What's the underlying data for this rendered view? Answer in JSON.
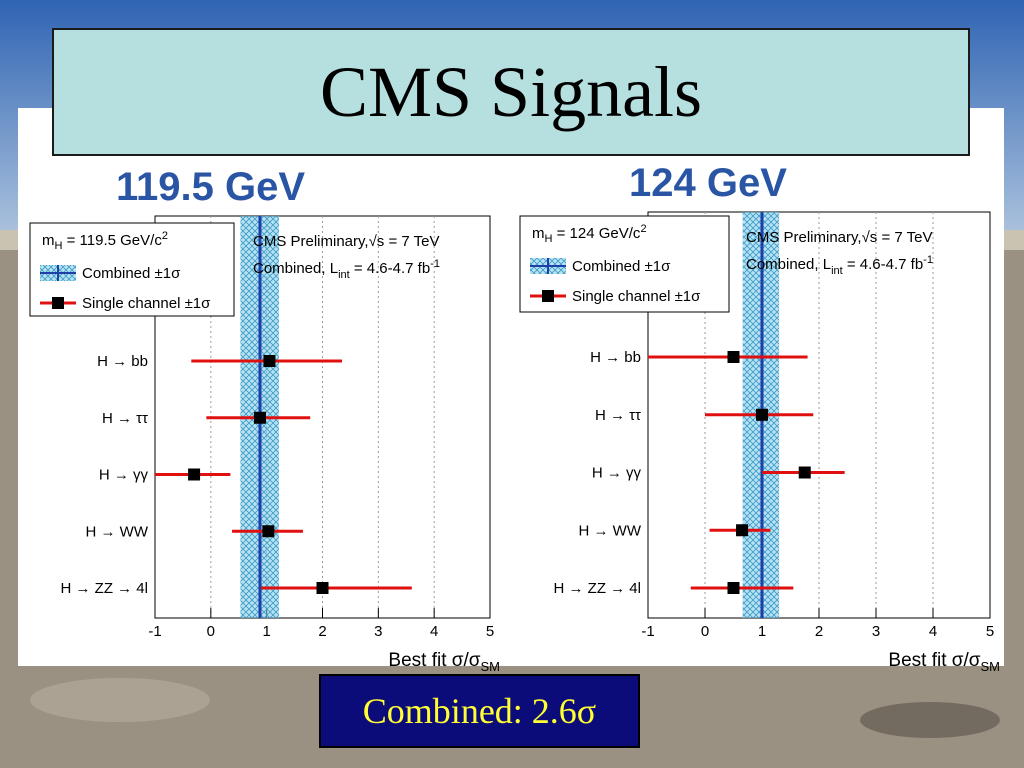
{
  "slide": {
    "title": "CMS Signals",
    "result": "Combined: 2.6σ"
  },
  "colors": {
    "title_bg": "#b6dfe0",
    "result_bg": "#0b0b7a",
    "result_text": "#ffff33",
    "mass_label": "#2a54a4",
    "combined_line": "#1f3fa8",
    "band": "#7ec9e6",
    "single_channel": "#e01010",
    "marker": "#000000"
  },
  "chart_data": [
    {
      "type": "scatter",
      "mass_label": "119.5 GeV",
      "legend": {
        "mass": "m",
        "mass_sub": "H",
        "mass_value": " = 119.5 GeV/c",
        "mass_sup": "2",
        "combined": "Combined ±1σ",
        "single": "Single channel ±1σ"
      },
      "annotation": {
        "line1": "CMS Preliminary,√s = 7 TeV",
        "line2a": "Combined, L",
        "line2sub": "int",
        "line2b": " = 4.6-4.7 fb",
        "line2sup": "-1"
      },
      "xlabel": "Best fit σ/σ",
      "xlabel_sub": "SM",
      "xlim": [
        -1,
        5
      ],
      "xticks": [
        "-1",
        "0",
        "1",
        "2",
        "3",
        "4",
        "5"
      ],
      "grid": true,
      "combined": {
        "value": 0.88,
        "low": 0.53,
        "high": 1.22
      },
      "channels": [
        {
          "label": "H → bb",
          "value": 1.05,
          "low": -0.35,
          "high": 2.35
        },
        {
          "label": "H → ττ",
          "value": 0.88,
          "low": -0.08,
          "high": 1.78
        },
        {
          "label": "H → γγ",
          "value": -0.3,
          "low": -1.0,
          "high": 0.35
        },
        {
          "label": "H → WW",
          "value": 1.03,
          "low": 0.38,
          "high": 1.65
        },
        {
          "label": "H → ZZ → 4l",
          "value": 2.0,
          "low": 0.9,
          "high": 3.6
        }
      ]
    },
    {
      "type": "scatter",
      "mass_label": "124 GeV",
      "legend": {
        "mass": "m",
        "mass_sub": "H",
        "mass_value": " = 124 GeV/c",
        "mass_sup": "2",
        "combined": "Combined ±1σ",
        "single": "Single channel ±1σ"
      },
      "annotation": {
        "line1": "CMS Preliminary,√s = 7 TeV",
        "line2a": "Combined, L",
        "line2sub": "int",
        "line2b": " = 4.6-4.7 fb",
        "line2sup": "-1"
      },
      "xlabel": "Best fit σ/σ",
      "xlabel_sub": "SM",
      "xlim": [
        -1,
        5
      ],
      "xticks": [
        "-1",
        "0",
        "1",
        "2",
        "3",
        "4",
        "5"
      ],
      "grid": true,
      "combined": {
        "value": 1.0,
        "low": 0.66,
        "high": 1.3
      },
      "channels": [
        {
          "label": "H → bb",
          "value": 0.5,
          "low": -1.0,
          "high": 1.8
        },
        {
          "label": "H → ττ",
          "value": 1.0,
          "low": 0.0,
          "high": 1.9
        },
        {
          "label": "H → γγ",
          "value": 1.75,
          "low": 1.0,
          "high": 2.45
        },
        {
          "label": "H → WW",
          "value": 0.65,
          "low": 0.08,
          "high": 1.15
        },
        {
          "label": "H → ZZ → 4l",
          "value": 0.5,
          "low": -0.25,
          "high": 1.55
        }
      ]
    }
  ]
}
